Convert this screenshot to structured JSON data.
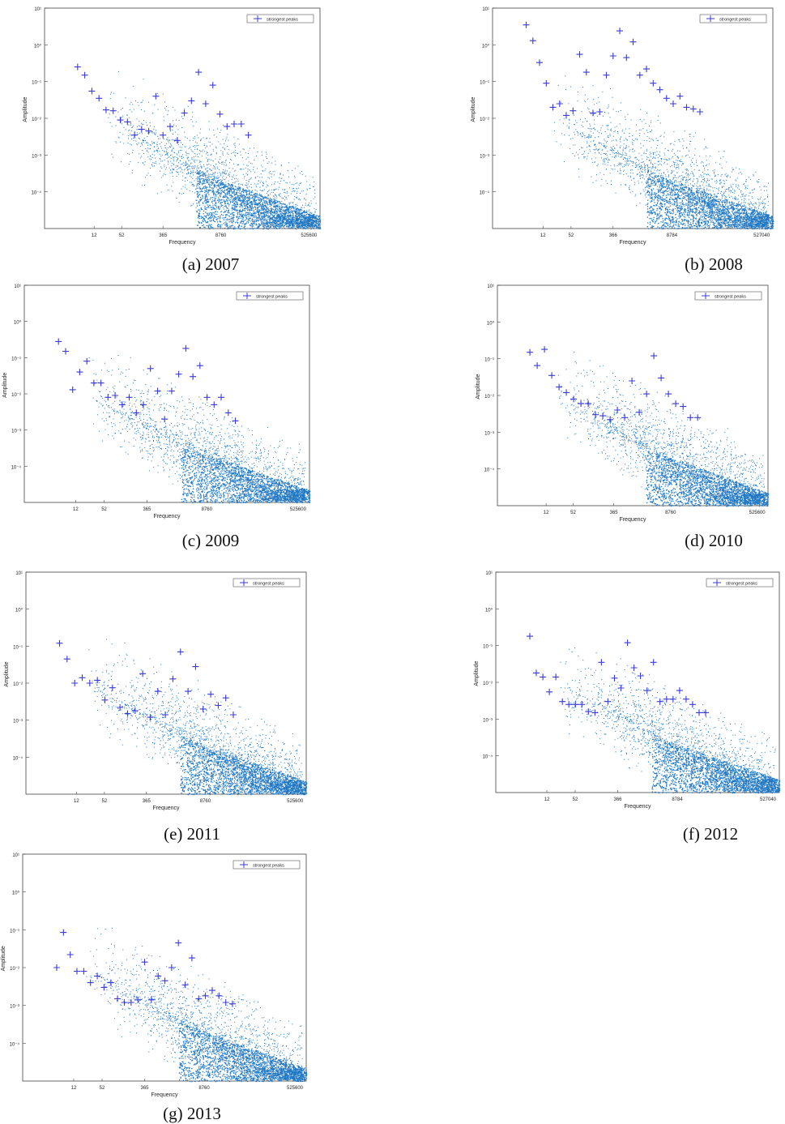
{
  "legend_label": "strongest peaks",
  "ylabel": "Amplitude",
  "xlabel": "Frequency",
  "colors": {
    "noise": "#1f77c4",
    "peak": "#3b3bd6",
    "axis": "#444444",
    "legend_border": "#555555"
  },
  "chart_data": [
    {
      "id": "a",
      "caption": "(a) 2007",
      "type": "scatter",
      "y_scale": "log",
      "ylim": [
        1e-05,
        10
      ],
      "y_ticks": [
        "10¹",
        "10⁰",
        "10⁻¹",
        "10⁻²",
        "10⁻³",
        "10⁻⁴"
      ],
      "x_ticks": [
        "12",
        "52",
        "365",
        "8760",
        "525600"
      ],
      "xlabel": "Frequency",
      "ylabel": "Amplitude",
      "series": [
        {
          "name": "strongest peaks",
          "values": [
            0.25,
            0.15,
            0.055,
            0.035,
            0.017,
            0.016,
            0.009,
            0.008,
            0.0035,
            0.005,
            0.0045,
            0.04,
            0.0035,
            0.006,
            0.0025,
            0.014,
            0.03,
            0.18,
            0.025,
            0.08,
            0.013,
            0.006,
            0.007,
            0.007,
            0.0035
          ]
        }
      ]
    },
    {
      "id": "b",
      "caption": "(b) 2008",
      "type": "scatter",
      "y_scale": "log",
      "ylim": [
        1e-05,
        10
      ],
      "y_ticks": [
        "10¹",
        "10⁰",
        "10⁻¹",
        "10⁻²",
        "10⁻³",
        "10⁻⁴"
      ],
      "x_ticks": [
        "12",
        "52",
        "366",
        "8784",
        "527040"
      ],
      "xlabel": "Frequency",
      "ylabel": "Amplitude",
      "series": [
        {
          "name": "strongest peaks",
          "values": [
            3.5,
            1.3,
            0.33,
            0.09,
            0.02,
            0.025,
            0.012,
            0.016,
            0.55,
            0.18,
            0.014,
            0.015,
            0.15,
            0.5,
            2.4,
            0.45,
            1.2,
            0.15,
            0.22,
            0.09,
            0.06,
            0.035,
            0.025,
            0.04,
            0.02,
            0.018,
            0.015
          ]
        }
      ]
    },
    {
      "id": "c",
      "caption": "(c) 2009",
      "type": "scatter",
      "y_scale": "log",
      "ylim": [
        1e-05,
        10
      ],
      "y_ticks": [
        "10¹",
        "10⁰",
        "10⁻¹",
        "10⁻²",
        "10⁻³",
        "10⁻⁴"
      ],
      "x_ticks": [
        "12",
        "52",
        "365",
        "8760",
        "525600"
      ],
      "xlabel": "Frequency",
      "ylabel": "Amplitude",
      "series": [
        {
          "name": "strongest peaks",
          "values": [
            0.28,
            0.15,
            0.013,
            0.04,
            0.08,
            0.02,
            0.02,
            0.008,
            0.009,
            0.005,
            0.008,
            0.003,
            0.005,
            0.05,
            0.012,
            0.002,
            0.012,
            0.035,
            0.18,
            0.03,
            0.06,
            0.008,
            0.005,
            0.008,
            0.003,
            0.0018
          ]
        }
      ]
    },
    {
      "id": "d",
      "caption": "(d) 2010",
      "type": "scatter",
      "y_scale": "log",
      "ylim": [
        1e-05,
        10
      ],
      "y_ticks": [
        "10¹",
        "10⁰",
        "10⁻¹",
        "10⁻²",
        "10⁻³",
        "10⁻⁴"
      ],
      "x_ticks": [
        "12",
        "52",
        "365",
        "8760",
        "525600"
      ],
      "xlabel": "Frequency",
      "ylabel": "Amplitude",
      "series": [
        {
          "name": "strongest peaks",
          "values": [
            0.15,
            0.065,
            0.18,
            0.035,
            0.017,
            0.012,
            0.008,
            0.006,
            0.006,
            0.003,
            0.0028,
            0.0022,
            0.004,
            0.0025,
            0.025,
            0.0035,
            0.011,
            0.12,
            0.03,
            0.011,
            0.006,
            0.005,
            0.0025,
            0.0025
          ]
        }
      ]
    },
    {
      "id": "e",
      "caption": "(e) 2011",
      "type": "scatter",
      "y_scale": "log",
      "ylim": [
        1e-05,
        10
      ],
      "y_ticks": [
        "10¹",
        "10⁰",
        "10⁻¹",
        "10⁻²",
        "10⁻³",
        "10⁻⁴"
      ],
      "x_ticks": [
        "12",
        "52",
        "365",
        "8760",
        "525600"
      ],
      "xlabel": "Frequency",
      "ylabel": "Amplitude",
      "series": [
        {
          "name": "strongest peaks",
          "values": [
            0.12,
            0.045,
            0.01,
            0.014,
            0.01,
            0.012,
            0.0035,
            0.0075,
            0.0022,
            0.0015,
            0.0018,
            0.018,
            0.0012,
            0.006,
            0.0014,
            0.013,
            0.07,
            0.006,
            0.028,
            0.002,
            0.005,
            0.0025,
            0.004,
            0.0014
          ]
        }
      ]
    },
    {
      "id": "f",
      "caption": "(f) 2012",
      "type": "scatter",
      "y_scale": "log",
      "ylim": [
        1e-05,
        10
      ],
      "y_ticks": [
        "10¹",
        "10⁰",
        "10⁻¹",
        "10⁻²",
        "10⁻³",
        "10⁻⁴"
      ],
      "x_ticks": [
        "12",
        "52",
        "366",
        "8784",
        "527040"
      ],
      "xlabel": "Frequency",
      "ylabel": "Amplitude",
      "series": [
        {
          "name": "strongest peaks",
          "values": [
            0.18,
            0.018,
            0.014,
            0.0055,
            0.014,
            0.003,
            0.0025,
            0.0025,
            0.0025,
            0.0016,
            0.0015,
            0.035,
            0.003,
            0.013,
            0.007,
            0.12,
            0.025,
            0.015,
            0.006,
            0.035,
            0.003,
            0.0035,
            0.0035,
            0.006,
            0.0035,
            0.0025,
            0.0015,
            0.0015
          ]
        }
      ]
    },
    {
      "id": "g",
      "caption": "(g) 2013",
      "type": "scatter",
      "y_scale": "log",
      "ylim": [
        1e-05,
        10
      ],
      "y_ticks": [
        "10¹",
        "10⁰",
        "10⁻¹",
        "10⁻²",
        "10⁻³",
        "10⁻⁴"
      ],
      "x_ticks": [
        "12",
        "52",
        "365",
        "8760",
        "525600"
      ],
      "xlabel": "Frequency",
      "ylabel": "Amplitude",
      "series": [
        {
          "name": "strongest peaks",
          "values": [
            0.01,
            0.085,
            0.022,
            0.008,
            0.008,
            0.004,
            0.006,
            0.003,
            0.004,
            0.0015,
            0.0012,
            0.0012,
            0.0014,
            0.014,
            0.0014,
            0.006,
            0.0045,
            0.01,
            0.045,
            0.0035,
            0.018,
            0.0015,
            0.0018,
            0.0025,
            0.0018,
            0.0012,
            0.0011
          ]
        }
      ]
    }
  ]
}
